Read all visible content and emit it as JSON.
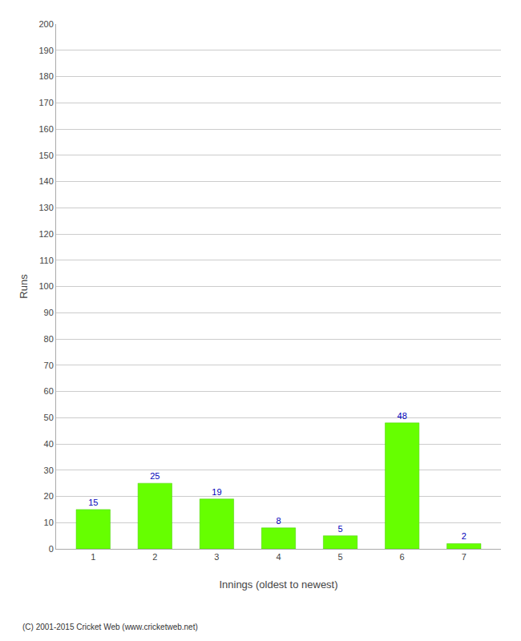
{
  "chart_data": {
    "type": "bar",
    "categories": [
      "1",
      "2",
      "3",
      "4",
      "5",
      "6",
      "7"
    ],
    "values": [
      15,
      25,
      19,
      8,
      5,
      48,
      2
    ],
    "color": "#66ff00",
    "xlabel": "Innings (oldest to newest)",
    "ylabel": "Runs",
    "ylim": [
      0,
      200
    ],
    "yticks": [
      0,
      10,
      20,
      30,
      40,
      50,
      60,
      70,
      80,
      90,
      100,
      110,
      120,
      130,
      140,
      150,
      160,
      170,
      180,
      190,
      200
    ],
    "grid": true,
    "data_labels": true,
    "annotations": [
      "(C) 2001-2015 Cricket Web (www.cricketweb.net)"
    ]
  }
}
